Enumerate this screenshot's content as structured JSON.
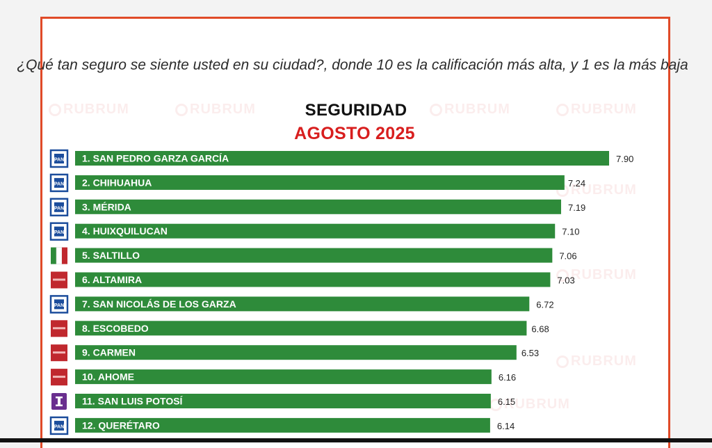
{
  "header": {
    "question": "¿Qué tan seguro se siente usted en su ciudad?, donde 10 es la calificación más alta, y 1 es la más baja"
  },
  "watermark": "RUBRUM",
  "colors": {
    "bar": "#2e8b3a",
    "frame": "#e04a28",
    "subtitle": "#d81e1e",
    "party_pan": "#1c4d9c",
    "party_pri": "#2e8b3a",
    "party_morena": "#c0282e",
    "party_independent": "#6a2f8f"
  },
  "chart_data": {
    "type": "bar",
    "orientation": "horizontal",
    "title": "SEGURIDAD",
    "subtitle": "AGOSTO 2025",
    "categories": [
      "1. SAN PEDRO GARZA GARCÍA",
      "2. CHIHUAHUA",
      "3. MÉRIDA",
      "4. HUIXQUILUCAN",
      "5. SALTILLO",
      "6. ALTAMIRA",
      "7. SAN NICOLÁS DE LOS GARZA",
      "8. ESCOBEDO",
      "9. CARMEN",
      "10. AHOME",
      "11. SAN LUIS POTOSÍ",
      "12. QUERÉTARO"
    ],
    "values": [
      7.9,
      7.24,
      7.19,
      7.1,
      7.06,
      7.03,
      6.72,
      6.68,
      6.53,
      6.16,
      6.15,
      6.14
    ],
    "value_labels": [
      "7.90",
      "7.24",
      "7.19",
      "7.10",
      "7.06",
      "7.03",
      "6.72",
      "6.68",
      "6.53",
      "6.16",
      "6.15",
      "6.14"
    ],
    "party_icons": [
      "pan-logo-icon",
      "pan-logo-icon",
      "pan-logo-icon",
      "pan-logo-icon",
      "pri-logo-icon",
      "morena-logo-icon",
      "pan-logo-icon",
      "morena-logo-icon",
      "morena-logo-icon",
      "morena-logo-icon",
      "independent-logo-icon",
      "pan-logo-icon"
    ],
    "xlim": [
      0,
      10
    ],
    "grid": false,
    "legend": "none"
  }
}
